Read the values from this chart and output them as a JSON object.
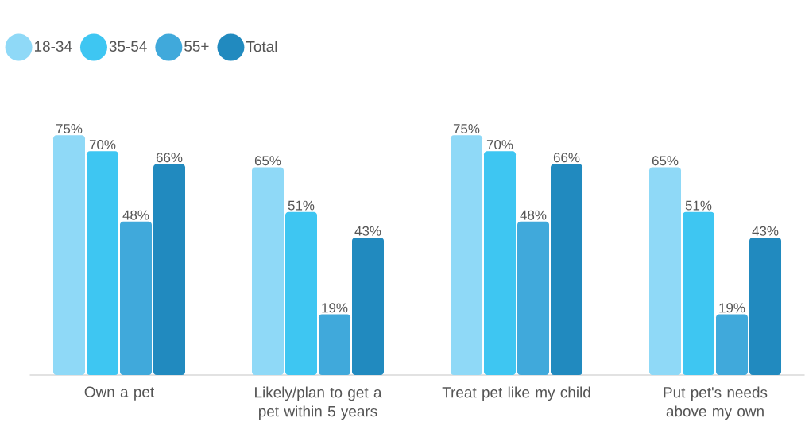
{
  "chart_data": {
    "type": "bar",
    "categories": [
      "Own a pet",
      "Likely/plan to get a pet within 5 years",
      "Treat pet like my child",
      "Put pet's needs above my own"
    ],
    "series": [
      {
        "name": "18-34",
        "color": "#8fd9f7",
        "values": [
          75,
          65,
          75,
          65
        ],
        "value_labels": [
          "75%",
          "65%",
          "75%",
          "65%"
        ]
      },
      {
        "name": "35-54",
        "color": "#3ec6f2",
        "values": [
          70,
          51,
          70,
          51
        ],
        "value_labels": [
          "70%",
          "51%",
          "70%",
          "51%"
        ]
      },
      {
        "name": "55+",
        "color": "#40a9db",
        "values": [
          48,
          19,
          48,
          19
        ],
        "value_labels": [
          "48%",
          "19%",
          "48%",
          "19%"
        ]
      },
      {
        "name": "Total",
        "color": "#218abf",
        "values": [
          66,
          43,
          66,
          43
        ],
        "value_labels": [
          "66%",
          "43%",
          "66%",
          "43%"
        ]
      }
    ],
    "legend": "top left"
  }
}
